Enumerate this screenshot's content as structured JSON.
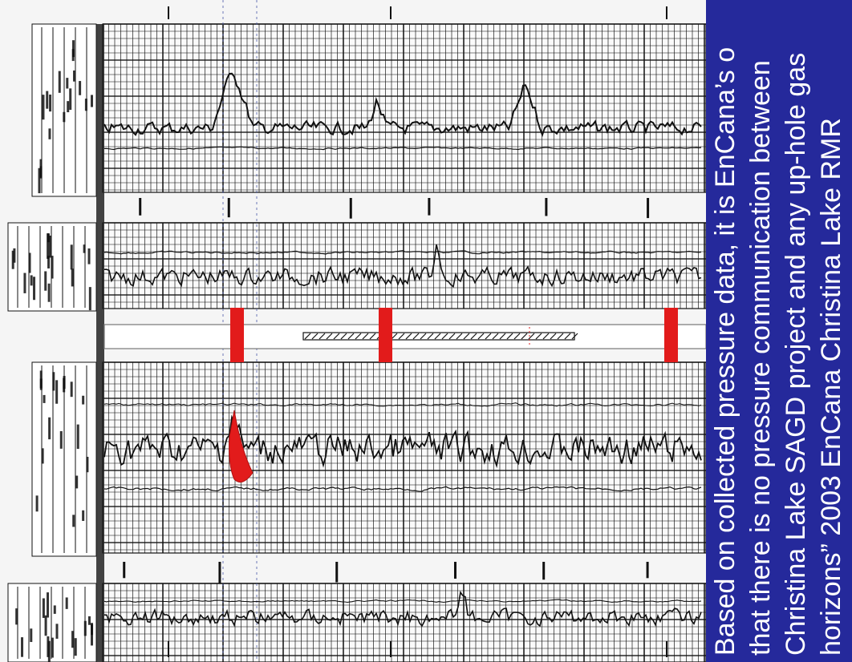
{
  "caption": {
    "lines": [
      "Based on collected pressure data, it is EnCana’s o",
      "that there is no pressure  communication between",
      "Christina Lake SAGD project and any up-hole gas",
      "horizons”  2003 EnCana Christina Lake RMR"
    ]
  },
  "colors": {
    "caption_background": "#25299b",
    "caption_text": "#ffffff",
    "marker": "#e21b1b",
    "log_ink": "#111111",
    "paper": "#f5f5f5"
  },
  "well_log": {
    "orientation": "rotated",
    "panels": [
      "upper-log-track",
      "upper-resistivity-track",
      "depth-marker-strip",
      "lower-log-track",
      "lower-resistivity-track"
    ],
    "markers": 3,
    "highlight": "red-gas-zone-flag"
  }
}
